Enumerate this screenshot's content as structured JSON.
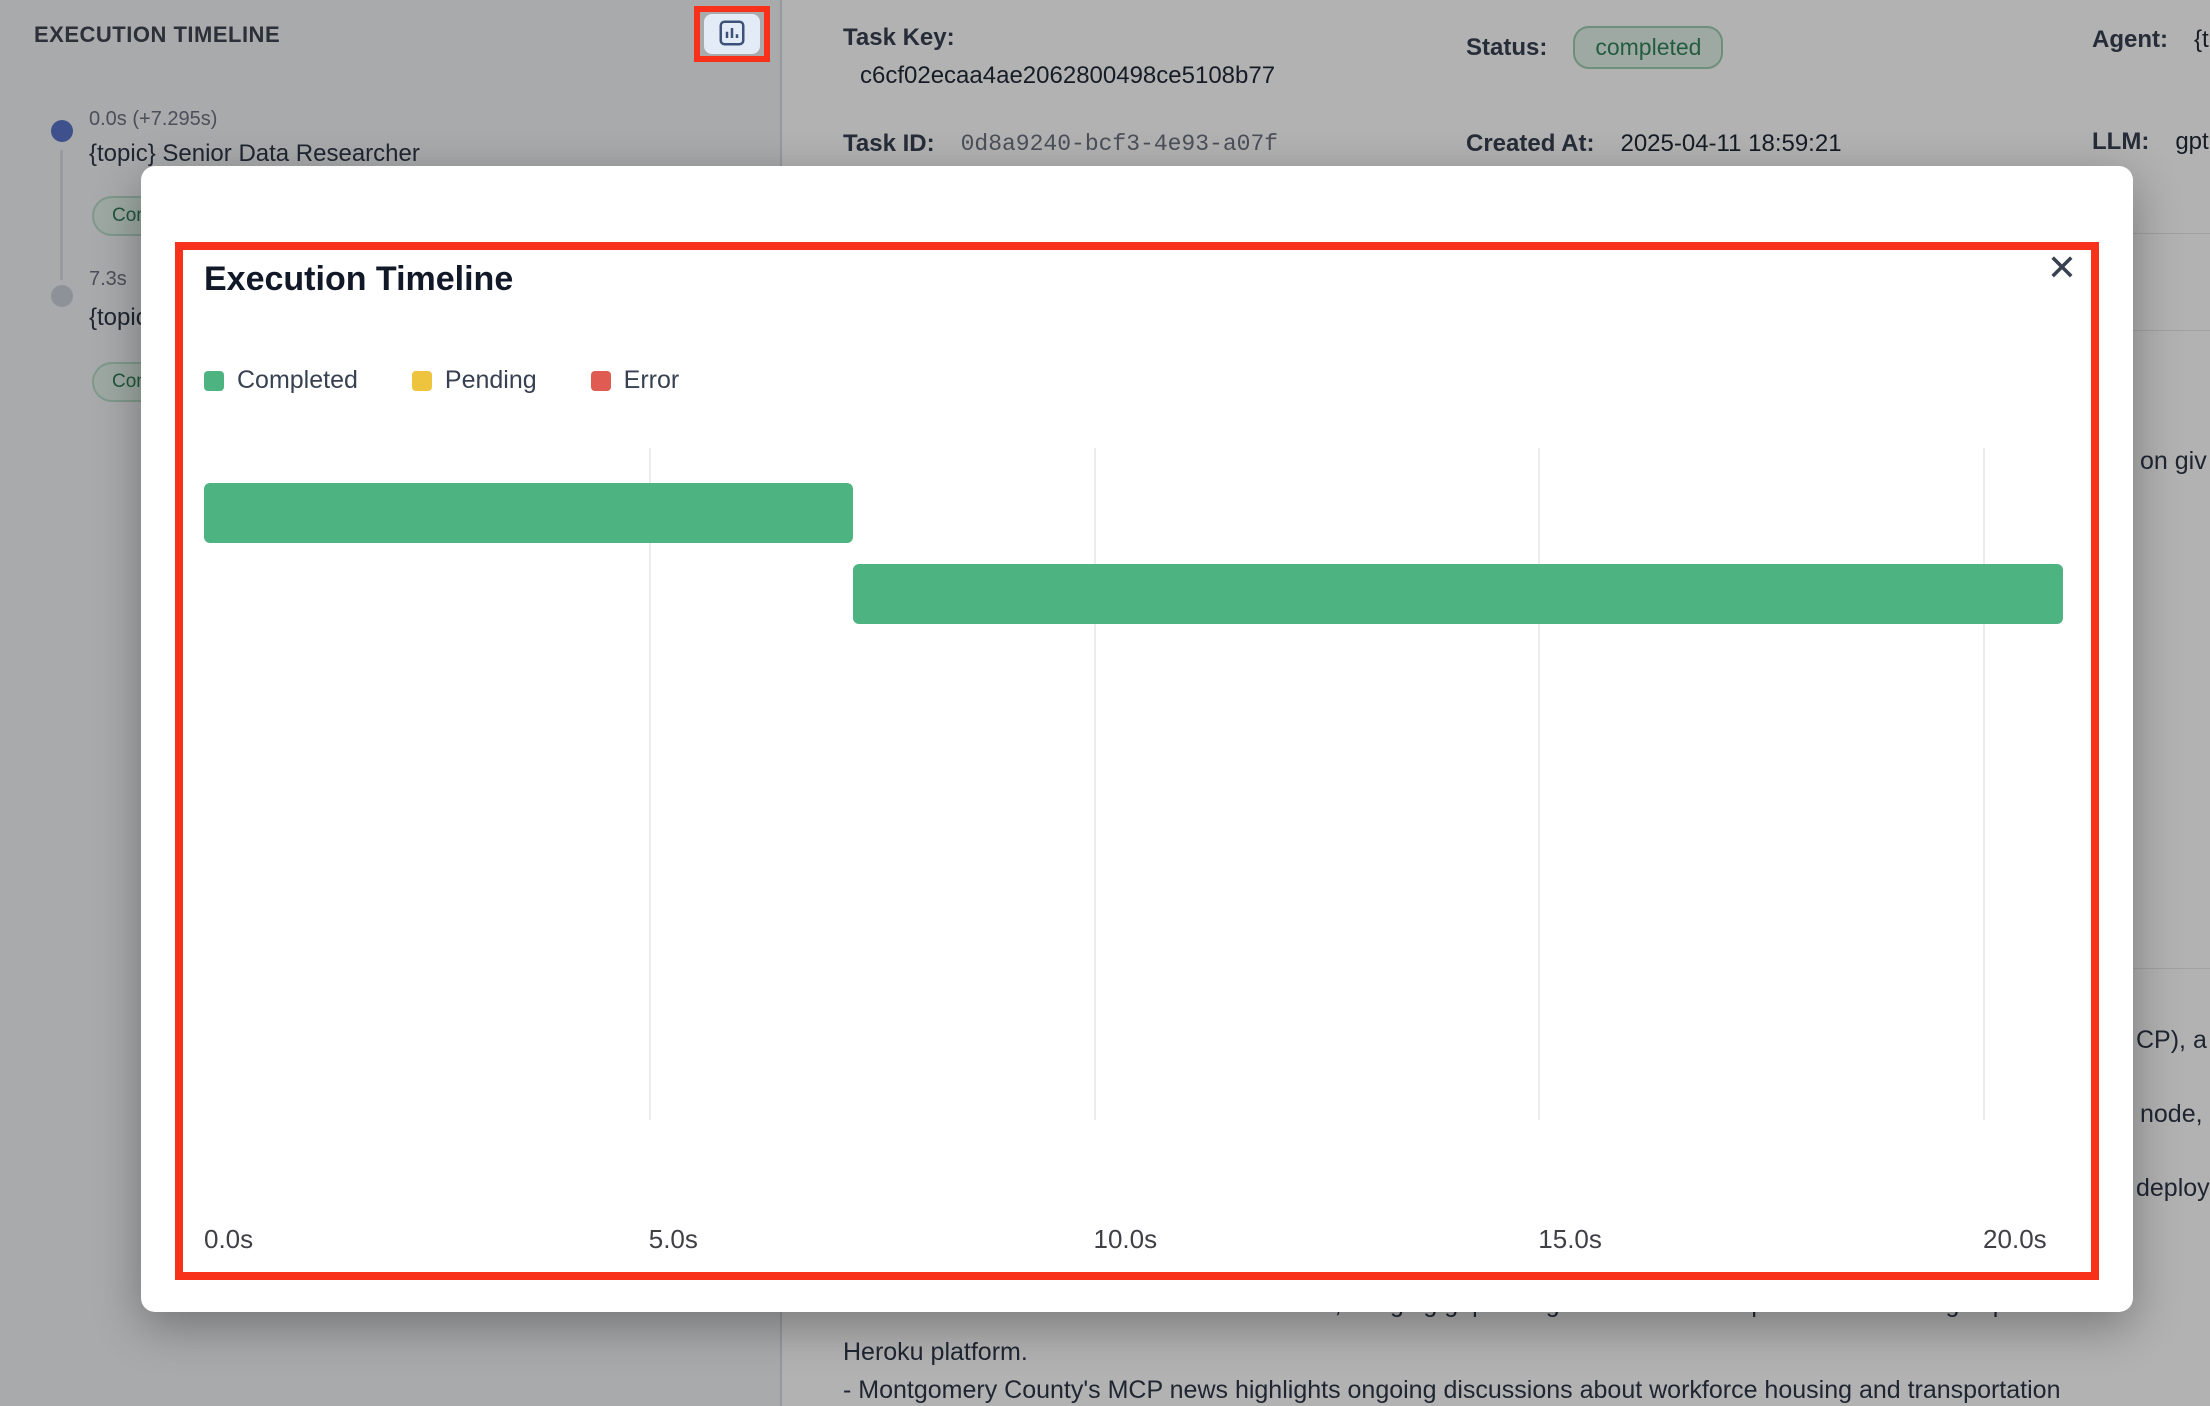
{
  "colors": {
    "annotation_red": "#f8311a",
    "completed_green": "#4db380",
    "pending_yellow": "#eec33e",
    "error_red": "#e05b52",
    "badge_green_text": "#2f855a",
    "active_dot_blue": "#5a74c9"
  },
  "sidebar": {
    "title": "EXECUTION TIMELINE",
    "entries": [
      {
        "time": "0.0s (+7.295s)",
        "name": "{topic} Senior Data Researcher",
        "badge": "Completed"
      },
      {
        "time": "7.3s",
        "name": "{topic}",
        "badge": "Completed"
      }
    ]
  },
  "task_panel": {
    "task_key_label": "Task Key:",
    "task_key_value": "c6cf02ecaa4ae2062800498ce5108b77",
    "status_label": "Status:",
    "status_value": "completed",
    "agent_label": "Agent:",
    "agent_value": "{t",
    "task_id_label": "Task ID:",
    "task_id_value": "0d8a9240-bcf3-4e93-a07f",
    "created_at_label": "Created At:",
    "created_at_value": "2025-04-11 18:59:21",
    "llm_label": "LLM:",
    "llm_value": "gpt",
    "right_edge_fragments": [
      "on giv",
      "CP), a",
      "node,",
      "deploy"
    ],
    "bottom_text_lines": [
      "The Heroku MCP Server has been launched, bridging gaps in agent-driven development and offering improve",
      "Heroku platform.",
      "- Montgomery County's MCP news highlights ongoing discussions about workforce housing and transportation"
    ]
  },
  "modal": {
    "title": "Execution Timeline",
    "close_icon": "✕",
    "legend": [
      {
        "label": "Completed",
        "color": "#4db380"
      },
      {
        "label": "Pending",
        "color": "#eec33e"
      },
      {
        "label": "Error",
        "color": "#e05b52"
      }
    ]
  },
  "chart_data": {
    "type": "bar",
    "subtype": "gantt-timeline",
    "title": "Execution Timeline",
    "x_ticks": [
      "0.0s",
      "5.0s",
      "10.0s",
      "15.0s",
      "20.0s"
    ],
    "x_tick_values": [
      0,
      5,
      10,
      15,
      20
    ],
    "xlim": [
      0,
      21
    ],
    "grid": true,
    "legend_position": "top-left",
    "bars": [
      {
        "row": 1,
        "start_s": 0.0,
        "end_s": 7.295,
        "status": "Completed",
        "color": "#4db380"
      },
      {
        "row": 2,
        "start_s": 7.3,
        "end_s": 20.9,
        "status": "Completed",
        "color": "#4db380"
      }
    ]
  }
}
